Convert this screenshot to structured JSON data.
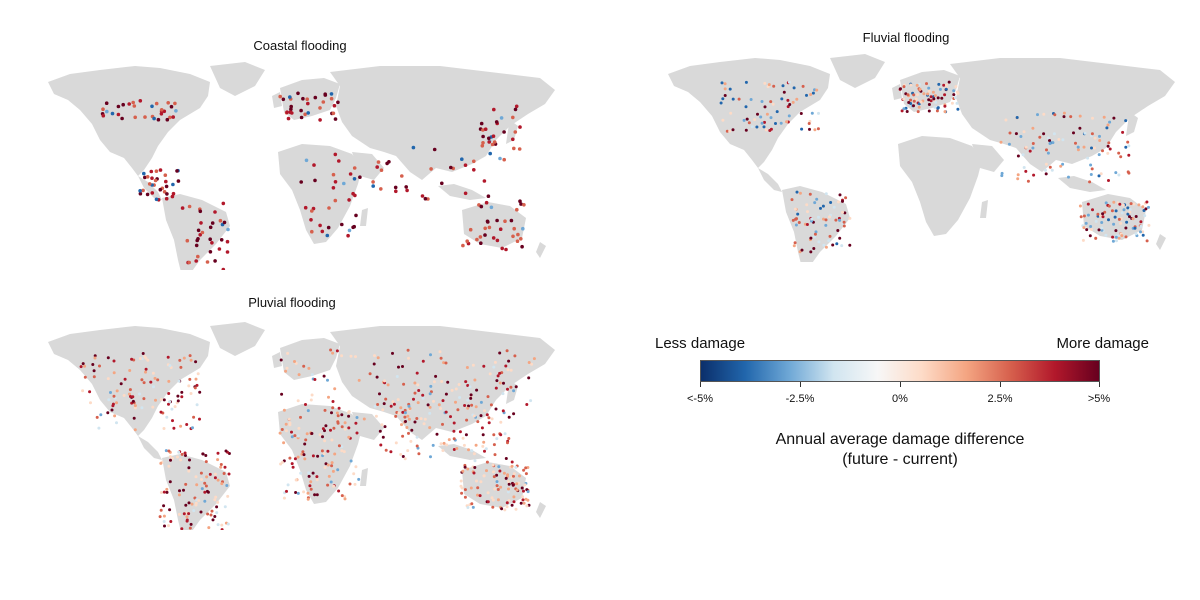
{
  "panels": [
    {
      "id": "coastal",
      "title": "Coastal flooding",
      "pattern": "coastal"
    },
    {
      "id": "fluvial",
      "title": "Fluvial flooding",
      "pattern": "fluvial"
    },
    {
      "id": "pluvial",
      "title": "Pluvial flooding",
      "pattern": "pluvial"
    }
  ],
  "legend": {
    "less_label": "Less damage",
    "more_label": "More damage",
    "ticks": [
      "<-5%",
      "-2.5%",
      "0%",
      "2.5%",
      ">5%"
    ],
    "title_line1": "Annual average damage difference",
    "title_line2": "(future - current)",
    "colors": [
      "#0b2f6b",
      "#2166ac",
      "#6fa8d6",
      "#d1e5f0",
      "#f7f7f7",
      "#fddbc7",
      "#f4a582",
      "#d6604d",
      "#b2182b",
      "#67001f"
    ]
  },
  "colors": {
    "land": "#d9d9d9",
    "background": "#ffffff"
  }
}
